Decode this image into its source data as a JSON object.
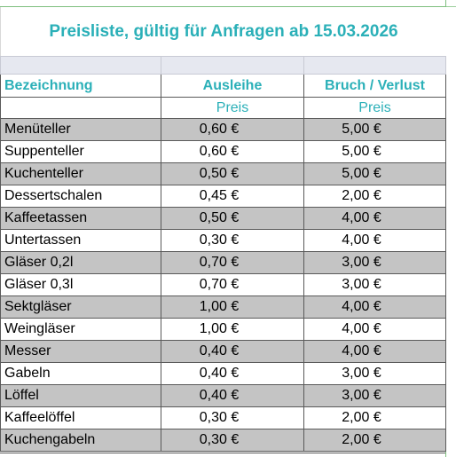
{
  "title": "Preisliste, gültig für Anfragen ab 15.03.2026",
  "headers": {
    "name": "Bezeichnung",
    "rental": "Ausleihe",
    "damage": "Bruch / Verlust",
    "rental_sub": "Preis",
    "damage_sub": "Preis"
  },
  "rows": [
    {
      "name": "Menüteller",
      "rental": "0,60 €",
      "damage": "5,00 €"
    },
    {
      "name": "Suppenteller",
      "rental": "0,60 €",
      "damage": "5,00 €"
    },
    {
      "name": "Kuchenteller",
      "rental": "0,50 €",
      "damage": "5,00 €"
    },
    {
      "name": "Dessertschalen",
      "rental": "0,45 €",
      "damage": "2,00 €"
    },
    {
      "name": "Kaffeetassen",
      "rental": "0,50 €",
      "damage": "4,00 €"
    },
    {
      "name": "Untertassen",
      "rental": "0,30 €",
      "damage": "4,00 €"
    },
    {
      "name": "Gläser 0,2l",
      "rental": "0,70 €",
      "damage": "3,00 €"
    },
    {
      "name": "Gläser 0,3l",
      "rental": "0,70 €",
      "damage": "3,00 €"
    },
    {
      "name": "Sektgläser",
      "rental": "1,00 €",
      "damage": "4,00 €"
    },
    {
      "name": "Weingläser",
      "rental": "1,00 €",
      "damage": "4,00 €"
    },
    {
      "name": "Messer",
      "rental": "0,40 €",
      "damage": "4,00 €"
    },
    {
      "name": "Gabeln",
      "rental": "0,40 €",
      "damage": "3,00 €"
    },
    {
      "name": "Löffel",
      "rental": "0,40 €",
      "damage": "3,00 €"
    },
    {
      "name": "Kaffeelöffel",
      "rental": "0,30 €",
      "damage": "2,00 €"
    },
    {
      "name": "Kuchengabeln",
      "rental": "0,30 €",
      "damage": "2,00 €"
    }
  ],
  "colors": {
    "accent": "#2bb0b8",
    "row_shade": "#c4c4c4",
    "spacer": "#e6e8f0"
  }
}
